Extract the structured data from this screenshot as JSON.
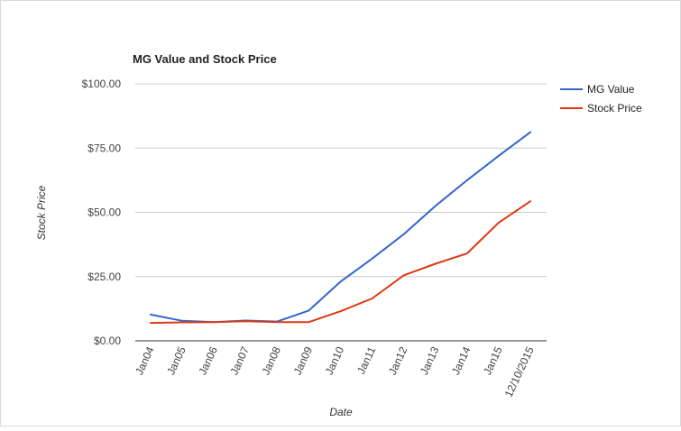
{
  "chart_data": {
    "type": "line",
    "title": "MG Value and Stock Price",
    "xlabel": "Date",
    "ylabel": "Stock Price",
    "categories": [
      "Jan04",
      "Jan05",
      "Jan06",
      "Jan07",
      "Jan08",
      "Jan09",
      "Jan10",
      "Jan11",
      "Jan12",
      "Jan13",
      "Jan14",
      "Jan15",
      "12/10/2015"
    ],
    "y_ticks": [
      "$0.00",
      "$25.00",
      "$50.00",
      "$75.00",
      "$100.00"
    ],
    "ylim": [
      0,
      100
    ],
    "grid": true,
    "legend_position": "right",
    "series": [
      {
        "name": "MG Value",
        "color": "#3366cc",
        "values": [
          10.2,
          7.8,
          7.3,
          7.9,
          7.5,
          11.8,
          23.0,
          32.0,
          41.5,
          52.5,
          62.5,
          72.0,
          81.2
        ]
      },
      {
        "name": "Stock Price",
        "color": "#dc3912",
        "values": [
          7.0,
          7.2,
          7.3,
          7.6,
          7.3,
          7.3,
          11.5,
          16.5,
          25.5,
          30.0,
          34.0,
          46.0,
          54.3
        ]
      }
    ]
  }
}
